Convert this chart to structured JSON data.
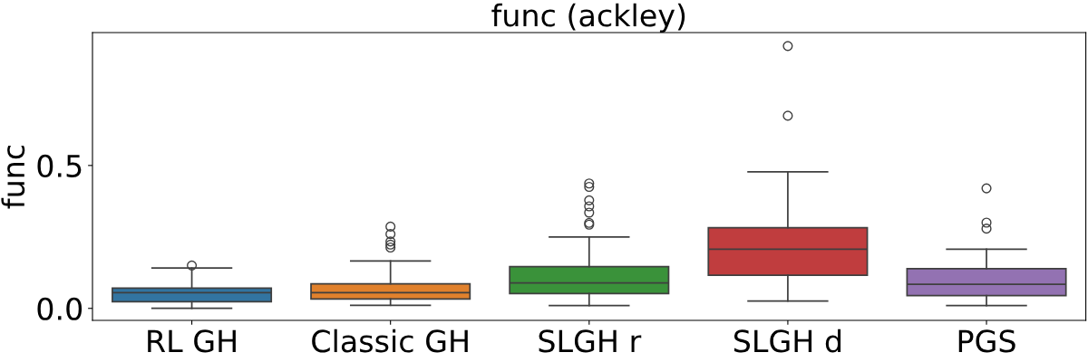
{
  "chart_data": {
    "type": "box",
    "title": "func (ackley)",
    "ylabel": "func",
    "categories": [
      "RL GH",
      "Classic GH",
      "SLGH r",
      "SLGH d",
      "PGS"
    ],
    "colors": [
      "#3274a1",
      "#e1812c",
      "#3a923a",
      "#c03d3e",
      "#9372b2"
    ],
    "boxes": [
      {
        "low": 0.0,
        "q1": 0.023,
        "median": 0.055,
        "q3": 0.071,
        "high": 0.141,
        "outliers": [
          0.15
        ]
      },
      {
        "low": 0.011,
        "q1": 0.033,
        "median": 0.055,
        "q3": 0.086,
        "high": 0.166,
        "outliers": [
          0.213,
          0.223,
          0.234,
          0.26,
          0.286
        ]
      },
      {
        "low": 0.01,
        "q1": 0.052,
        "median": 0.089,
        "q3": 0.146,
        "high": 0.25,
        "outliers": [
          0.293,
          0.299,
          0.335,
          0.357,
          0.378,
          0.425,
          0.437
        ]
      },
      {
        "low": 0.026,
        "q1": 0.116,
        "median": 0.207,
        "q3": 0.282,
        "high": 0.478,
        "outliers": [
          0.674,
          0.918
        ]
      },
      {
        "low": 0.01,
        "q1": 0.045,
        "median": 0.084,
        "q3": 0.139,
        "high": 0.207,
        "outliers": [
          0.279,
          0.3,
          0.42
        ]
      }
    ],
    "ylim": [
      -0.042,
      0.965
    ],
    "yticks": [
      {
        "value": 0,
        "label": "0.0"
      },
      0.5
    ],
    "grid": false,
    "legend": false
  }
}
